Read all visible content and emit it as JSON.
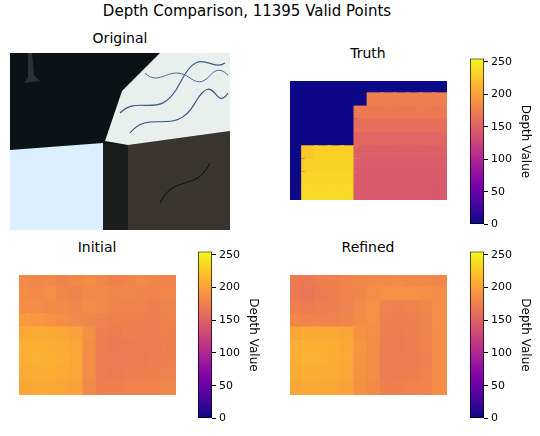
{
  "title": "Depth Comparison, 11395 Valid Points",
  "chart_data": [
    {
      "type": "image",
      "title": "Original"
    },
    {
      "type": "heatmap",
      "title": "Truth",
      "color": "plasma",
      "tick_labels": false,
      "cells": [
        [
          0,
          0,
          0,
          0,
          0,
          0,
          0,
          0,
          0,
          0,
          0,
          0
        ],
        [
          0,
          0,
          0,
          0,
          0,
          0,
          175,
          175,
          175,
          175,
          175,
          175
        ],
        [
          0,
          0,
          0,
          0,
          0,
          170,
          170,
          170,
          170,
          170,
          170,
          170
        ],
        [
          0,
          0,
          0,
          0,
          0,
          162,
          162,
          162,
          162,
          162,
          162,
          162
        ],
        [
          0,
          0,
          0,
          0,
          0,
          155,
          155,
          155,
          155,
          155,
          155,
          155
        ],
        [
          0,
          225,
          230,
          230,
          230,
          148,
          148,
          148,
          148,
          148,
          148,
          148
        ],
        [
          0,
          230,
          232,
          232,
          232,
          146,
          146,
          146,
          146,
          146,
          146,
          146
        ],
        [
          0,
          234,
          234,
          234,
          234,
          145,
          145,
          145,
          145,
          145,
          145,
          145
        ],
        [
          0,
          236,
          236,
          236,
          236,
          144,
          144,
          144,
          144,
          144,
          144,
          144
        ]
      ],
      "colorbar": {
        "label": "Depth Value",
        "range": [
          0,
          255
        ],
        "ticks": [
          0,
          50,
          100,
          150,
          200,
          250
        ]
      }
    },
    {
      "type": "heatmap",
      "title": "Initial",
      "color": "plasma",
      "tick_labels": false,
      "cells": [
        [
          182,
          180,
          183,
          178,
          181,
          185,
          180,
          176,
          179,
          182,
          180,
          178
        ],
        [
          184,
          182,
          186,
          180,
          178,
          182,
          183,
          180,
          181,
          179,
          177,
          180
        ],
        [
          186,
          185,
          183,
          182,
          180,
          184,
          182,
          179,
          178,
          177,
          176,
          178
        ],
        [
          195,
          193,
          190,
          186,
          182,
          180,
          178,
          176,
          175,
          176,
          174,
          177
        ],
        [
          205,
          207,
          206,
          204,
          200,
          188,
          176,
          172,
          175,
          174,
          173,
          176
        ],
        [
          208,
          210,
          209,
          207,
          203,
          186,
          174,
          170,
          172,
          173,
          172,
          175
        ],
        [
          209,
          211,
          210,
          208,
          204,
          185,
          173,
          171,
          173,
          172,
          174,
          176
        ],
        [
          207,
          209,
          208,
          206,
          202,
          184,
          174,
          172,
          174,
          175,
          176,
          178
        ],
        [
          204,
          206,
          205,
          203,
          200,
          183,
          176,
          175,
          177,
          178,
          178,
          180
        ]
      ],
      "colorbar": {
        "label": "Depth Value",
        "range": [
          0,
          255
        ],
        "ticks": [
          0,
          50,
          100,
          150,
          200,
          250
        ]
      }
    },
    {
      "type": "heatmap",
      "title": "Refined",
      "color": "plasma",
      "tick_labels": false,
      "cells": [
        [
          172,
          170,
          174,
          176,
          178,
          180,
          182,
          183,
          184,
          183,
          182,
          180
        ],
        [
          170,
          168,
          172,
          175,
          177,
          180,
          186,
          188,
          189,
          188,
          187,
          185
        ],
        [
          174,
          172,
          174,
          176,
          178,
          182,
          188,
          178,
          176,
          178,
          180,
          186
        ],
        [
          180,
          178,
          177,
          178,
          180,
          184,
          188,
          176,
          174,
          175,
          178,
          186
        ],
        [
          204,
          206,
          206,
          205,
          202,
          190,
          186,
          175,
          173,
          175,
          178,
          185
        ],
        [
          208,
          210,
          210,
          208,
          204,
          192,
          185,
          174,
          172,
          174,
          177,
          184
        ],
        [
          209,
          211,
          211,
          209,
          205,
          191,
          184,
          173,
          172,
          173,
          176,
          184
        ],
        [
          207,
          209,
          209,
          207,
          203,
          190,
          184,
          174,
          173,
          174,
          177,
          184
        ],
        [
          203,
          205,
          205,
          204,
          201,
          188,
          183,
          176,
          176,
          177,
          179,
          185
        ]
      ],
      "colorbar": {
        "label": "Depth Value",
        "range": [
          0,
          255
        ],
        "ticks": [
          0,
          50,
          100,
          150,
          200,
          250
        ]
      }
    }
  ]
}
